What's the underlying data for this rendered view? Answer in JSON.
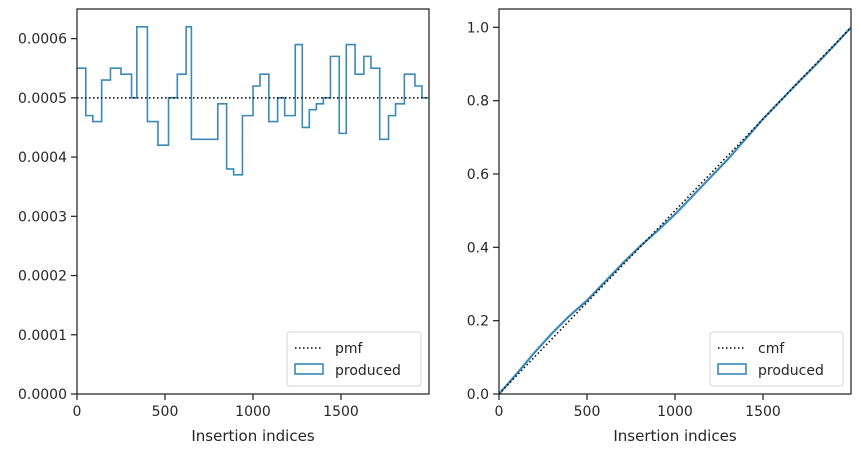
{
  "chart_data": [
    {
      "type": "histogram-step",
      "xlabel": "Insertion indices",
      "ylabel": "",
      "xlim": [
        0,
        2000
      ],
      "ylim": [
        0,
        0.00065
      ],
      "xticks": [
        0,
        500,
        1000,
        1500
      ],
      "xtick_labels": [
        "0",
        "500",
        "1000",
        "1500"
      ],
      "yticks": [
        0,
        0.0001,
        0.0002,
        0.0003,
        0.0004,
        0.0005,
        0.0006
      ],
      "ytick_labels": [
        "0.0000",
        "0.0001",
        "0.0002",
        "0.0003",
        "0.0004",
        "0.0005",
        "0.0006"
      ],
      "legend_position": "lower right",
      "reference": {
        "name": "pmf",
        "style": "dotted",
        "color": "#000000",
        "value": 0.0005
      },
      "series": [
        {
          "name": "produced",
          "color": "#3a89b8",
          "bin_edges": [
            0,
            50,
            90,
            140,
            190,
            250,
            310,
            340,
            400,
            460,
            520,
            570,
            620,
            650,
            800,
            850,
            890,
            940,
            1000,
            1040,
            1090,
            1140,
            1180,
            1240,
            1280,
            1320,
            1360,
            1400,
            1440,
            1490,
            1530,
            1580,
            1630,
            1670,
            1720,
            1770,
            1810,
            1860,
            1920,
            1960,
            2000
          ],
          "values": [
            0.00055,
            0.00047,
            0.00046,
            0.00053,
            0.00055,
            0.00054,
            0.0005,
            0.00062,
            0.00046,
            0.00042,
            0.0005,
            0.00054,
            0.00062,
            0.00043,
            0.00049,
            0.00038,
            0.00037,
            0.00047,
            0.00052,
            0.00054,
            0.00046,
            0.0005,
            0.00047,
            0.00059,
            0.00045,
            0.00048,
            0.00049,
            0.0005,
            0.00057,
            0.00044,
            0.00059,
            0.00054,
            0.00057,
            0.00055,
            0.00043,
            0.00047,
            0.00049,
            0.00054,
            0.00052,
            0.0005
          ]
        }
      ]
    },
    {
      "type": "line",
      "xlabel": "Insertion indices",
      "ylabel": "",
      "xlim": [
        0,
        2000
      ],
      "ylim": [
        0,
        1.05
      ],
      "xticks": [
        0,
        500,
        1000,
        1500
      ],
      "xtick_labels": [
        "0",
        "500",
        "1000",
        "1500"
      ],
      "yticks": [
        0,
        0.2,
        0.4,
        0.6,
        0.8,
        1.0
      ],
      "ytick_labels": [
        "0.0",
        "0.2",
        "0.4",
        "0.6",
        "0.8",
        "1.0"
      ],
      "legend_position": "lower right",
      "reference": {
        "name": "cmf",
        "style": "dotted",
        "color": "#000000",
        "x": [
          0,
          2000
        ],
        "y": [
          0,
          1.0
        ]
      },
      "series": [
        {
          "name": "produced",
          "color": "#3a89b8",
          "x": [
            0,
            100,
            200,
            300,
            400,
            500,
            600,
            700,
            800,
            900,
            1000,
            1100,
            1200,
            1300,
            1400,
            1500,
            1600,
            1700,
            1800,
            1900,
            2000
          ],
          "y": [
            0,
            0.055,
            0.112,
            0.165,
            0.213,
            0.255,
            0.305,
            0.355,
            0.402,
            0.445,
            0.49,
            0.54,
            0.59,
            0.64,
            0.695,
            0.75,
            0.8,
            0.85,
            0.898,
            0.948,
            1.0
          ]
        }
      ]
    }
  ]
}
